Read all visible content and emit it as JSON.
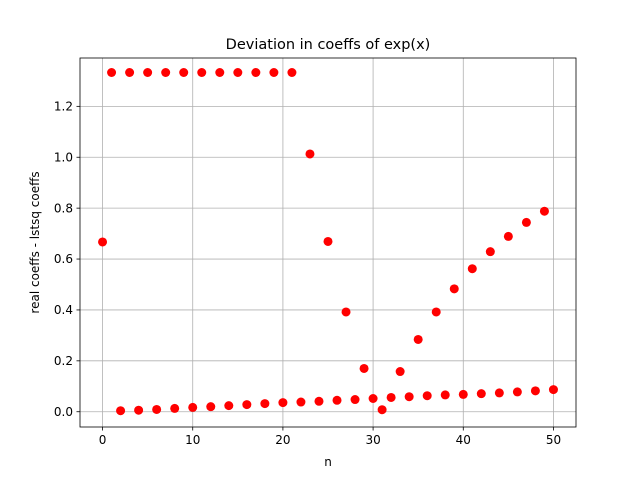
{
  "chart_data": {
    "type": "scatter",
    "title": "Deviation in coeffs of exp(x)",
    "xlabel": "n",
    "ylabel": "real coeffs - lstsq coeffs",
    "xlim": [
      -2.5,
      52.5
    ],
    "ylim": [
      -0.06,
      1.39
    ],
    "xticks": [
      0,
      10,
      20,
      30,
      40,
      50
    ],
    "yticks": [
      0.0,
      0.2,
      0.4,
      0.6,
      0.8,
      1.0,
      1.2
    ],
    "xtick_labels": [
      "0",
      "10",
      "20",
      "30",
      "40",
      "50"
    ],
    "ytick_labels": [
      "0.0",
      "0.2",
      "0.4",
      "0.6",
      "0.8",
      "1.0",
      "1.2"
    ],
    "grid": true,
    "marker_color": "#ff0000",
    "series": [
      {
        "x": [
          0,
          1,
          2,
          3,
          4,
          5,
          6,
          7,
          8,
          9,
          10,
          11,
          12,
          13,
          14,
          15,
          16,
          17,
          18,
          19,
          20,
          21,
          22,
          23,
          24,
          25,
          26,
          27,
          28,
          29,
          30,
          31,
          32,
          33,
          34,
          35,
          36,
          37,
          38,
          39,
          40,
          41,
          42,
          43,
          44,
          45,
          46,
          47,
          48,
          49,
          50
        ],
        "y": [
          0.667,
          1.333,
          0.004,
          1.333,
          0.006,
          1.333,
          0.009,
          1.333,
          0.013,
          1.333,
          0.017,
          1.333,
          0.02,
          1.333,
          0.024,
          1.333,
          0.028,
          1.333,
          0.032,
          1.333,
          0.036,
          1.333,
          0.038,
          1.013,
          0.041,
          0.669,
          0.045,
          0.392,
          0.048,
          0.17,
          0.052,
          0.008,
          0.056,
          0.158,
          0.059,
          0.284,
          0.063,
          0.392,
          0.066,
          0.483,
          0.068,
          0.562,
          0.071,
          0.629,
          0.074,
          0.689,
          0.078,
          0.744,
          0.082,
          0.788,
          0.087
        ]
      }
    ]
  }
}
